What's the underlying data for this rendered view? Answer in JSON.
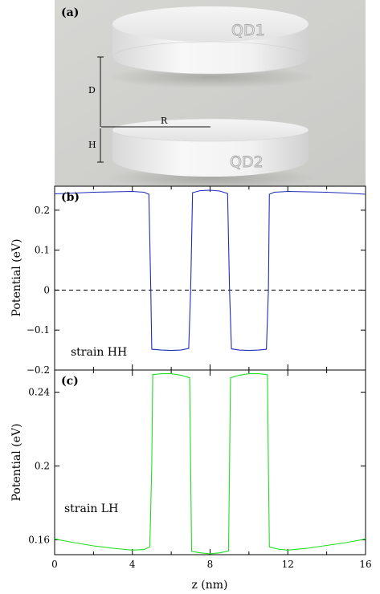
{
  "panel_a": {
    "label": "(a)",
    "dot_top": "QD1",
    "dot_bottom": "QD2",
    "dim_d": "D",
    "dim_r": "R",
    "dim_h": "H"
  },
  "chart_data": [
    {
      "type": "line",
      "panel": "(b)",
      "annotation": "strain HH",
      "xlabel": "",
      "ylabel": "Potential (eV)",
      "xlim": [
        0,
        16
      ],
      "ylim": [
        -0.2,
        0.26
      ],
      "yticks": [
        -0.2,
        -0.1,
        0,
        0.1,
        0.2
      ],
      "ytick_labels": [
        "−0.2",
        "−0.1",
        "0",
        "0.1",
        "0.2"
      ],
      "reference_line": 0,
      "color": "#1f2fb8",
      "series": [
        {
          "x": [
            0,
            1,
            2,
            3,
            4,
            4.6,
            4.85,
            4.95,
            5.0,
            5.5,
            6.0,
            6.5,
            6.9,
            7.0,
            7.1,
            7.5,
            8.0,
            8.5,
            8.9,
            9.0,
            9.1,
            9.5,
            10.0,
            10.5,
            10.9,
            11.0,
            11.05,
            11.3,
            12,
            13,
            14,
            15,
            16
          ],
          "y": [
            0.241,
            0.243,
            0.245,
            0.246,
            0.247,
            0.245,
            0.24,
            0.0,
            -0.148,
            -0.15,
            -0.151,
            -0.15,
            -0.146,
            0.0,
            0.244,
            0.249,
            0.25,
            0.248,
            0.242,
            0.0,
            -0.147,
            -0.15,
            -0.151,
            -0.15,
            -0.148,
            0.0,
            0.24,
            0.245,
            0.247,
            0.246,
            0.245,
            0.243,
            0.24
          ]
        }
      ]
    },
    {
      "type": "line",
      "panel": "(c)",
      "annotation": "strain LH",
      "xlabel": "z (nm)",
      "ylabel": "Potential (eV)",
      "xlim": [
        0,
        16
      ],
      "ylim": [
        0.152,
        0.252
      ],
      "xticks": [
        0,
        4,
        8,
        12,
        16
      ],
      "xtick_labels": [
        "0",
        "4",
        "8",
        "12",
        "16"
      ],
      "yticks": [
        0.16,
        0.2,
        0.24
      ],
      "ytick_labels": [
        "0.16",
        "0.2",
        "0.24"
      ],
      "color": "#22dd22",
      "series": [
        {
          "x": [
            0,
            1,
            2,
            3,
            4,
            4.6,
            4.9,
            5.0,
            5.05,
            5.5,
            6.0,
            6.5,
            6.95,
            7.0,
            7.05,
            7.5,
            8.0,
            8.5,
            8.95,
            9.0,
            9.05,
            9.5,
            10.0,
            10.5,
            10.95,
            11.0,
            11.05,
            11.5,
            12,
            13,
            14,
            15,
            16
          ],
          "y": [
            0.1605,
            0.1585,
            0.1568,
            0.1555,
            0.1545,
            0.1548,
            0.1562,
            0.2,
            0.2495,
            0.25,
            0.25,
            0.2492,
            0.2478,
            0.2,
            0.1538,
            0.153,
            0.1525,
            0.153,
            0.154,
            0.2,
            0.2478,
            0.2492,
            0.25,
            0.25,
            0.2495,
            0.2,
            0.1562,
            0.155,
            0.1545,
            0.1555,
            0.157,
            0.1585,
            0.1605
          ]
        }
      ]
    }
  ]
}
